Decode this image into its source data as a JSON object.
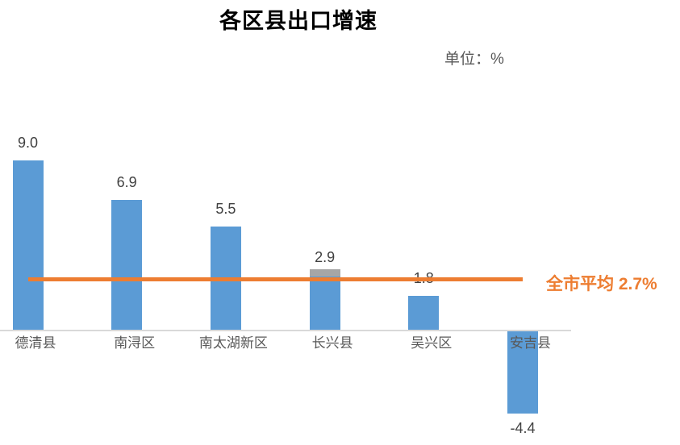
{
  "chart_data": {
    "type": "bar",
    "title": "各区县出口增速",
    "unit_label": "单位：%",
    "categories": [
      "德清县",
      "南浔区",
      "南太湖新区",
      "长兴县",
      "吴兴区",
      "安吉县"
    ],
    "values": [
      9.0,
      6.9,
      5.5,
      2.9,
      1.8,
      -4.4
    ],
    "value_labels": [
      "9.0",
      "6.9",
      "5.5",
      "2.9",
      "1.8",
      "-4.4"
    ],
    "average_line": {
      "value": 2.7,
      "label": "全市平均 2.7%"
    },
    "gray_cap": {
      "index": 3
    },
    "ylim": [
      -5,
      10
    ],
    "grid": false,
    "legend": "none",
    "colors": {
      "bar": "#5B9BD5",
      "average_line": "#ED7D31",
      "average_label": "#ED7D31",
      "gray_cap": "#A6A6A6",
      "axis": "#D9D9D9",
      "title": "#000000",
      "value_label": "#404040",
      "category_label": "#595959",
      "unit_label": "#595959",
      "background": "#FFFFFF"
    }
  }
}
